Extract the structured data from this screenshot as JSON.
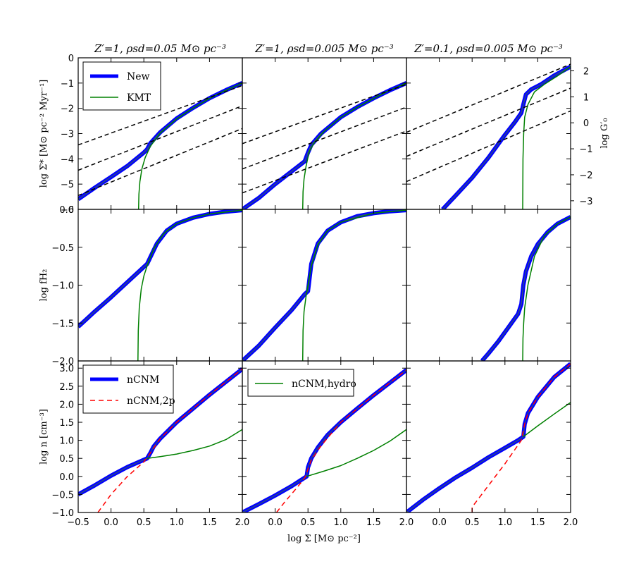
{
  "figure": {
    "xlabel": "log Σ [M⊙ pc⁻²]",
    "col_titles": [
      "Z′=1, ρsd=0.05 M⊙ pc⁻³",
      "Z′=1, ρsd=0.005 M⊙ pc⁻³",
      "Z′=0.1, ρsd=0.005 M⊙ pc⁻³"
    ],
    "row_ylabels": [
      "log Σ̇* [M⊙ pc⁻² Myr⁻¹]",
      "log fH₂",
      "log n [cm⁻³]"
    ],
    "right_ylabel": "log G′₀",
    "legend_top": [
      "New",
      "KMT"
    ],
    "legend_bottom_left": [
      "nCNM",
      "nCNM,2p"
    ],
    "legend_bottom_mid": [
      "nCNM,hydro"
    ],
    "colors": {
      "new": "#0000ff",
      "new_core": "#2f4f7f",
      "kmt": "#008000",
      "twop": "#ff0000",
      "guide": "#000000"
    }
  },
  "chart_data": [
    {
      "panel": "sfr-z1-rho005",
      "type": "line",
      "xlim": [
        -0.5,
        2.0
      ],
      "ylim": [
        -6,
        0
      ],
      "series": [
        {
          "name": "New",
          "x": [
            -0.5,
            -0.25,
            0,
            0.25,
            0.5,
            0.55,
            0.6,
            0.75,
            1,
            1.25,
            1.5,
            1.75,
            2.0
          ],
          "y": [
            -5.6,
            -5.15,
            -4.72,
            -4.28,
            -3.75,
            -3.62,
            -3.38,
            -2.95,
            -2.4,
            -1.98,
            -1.6,
            -1.28,
            -1.0
          ]
        },
        {
          "name": "KMT",
          "x": [
            0.42,
            0.425,
            0.44,
            0.47,
            0.52,
            0.6,
            0.75,
            1,
            1.25,
            1.5,
            1.75,
            2.0
          ],
          "y": [
            -6,
            -5.4,
            -4.9,
            -4.4,
            -3.95,
            -3.5,
            -2.98,
            -2.42,
            -1.99,
            -1.61,
            -1.28,
            -1.0
          ]
        },
        {
          "name": "G0 guide +1",
          "x": [
            -0.5,
            2.0
          ],
          "y": [
            -3.45,
            -1.1
          ]
        },
        {
          "name": "G0 guide 0",
          "x": [
            -0.5,
            2.0
          ],
          "y": [
            -4.45,
            -1.9
          ]
        },
        {
          "name": "G0 guide -1",
          "x": [
            -0.5,
            2.0
          ],
          "y": [
            -5.45,
            -2.8
          ]
        }
      ]
    },
    {
      "panel": "sfr-z1-rho0005",
      "type": "line",
      "xlim": [
        -0.5,
        2.0
      ],
      "ylim": [
        -6,
        0
      ],
      "series": [
        {
          "name": "New",
          "x": [
            -0.5,
            -0.25,
            0,
            0.25,
            0.45,
            0.5,
            0.55,
            0.7,
            1,
            1.25,
            1.5,
            1.75,
            2.0
          ],
          "y": [
            -6.0,
            -5.55,
            -5.0,
            -4.5,
            -4.1,
            -3.75,
            -3.45,
            -3.0,
            -2.35,
            -1.95,
            -1.6,
            -1.28,
            -1.0
          ]
        },
        {
          "name": "KMT",
          "x": [
            0.42,
            0.425,
            0.44,
            0.47,
            0.52,
            0.6,
            0.75,
            1,
            1.25,
            1.5,
            1.75,
            2.0
          ],
          "y": [
            -6,
            -5.3,
            -4.8,
            -4.3,
            -3.7,
            -3.35,
            -2.9,
            -2.36,
            -1.96,
            -1.61,
            -1.28,
            -1.0
          ]
        },
        {
          "name": "G0 guide +1",
          "x": [
            -0.5,
            2.0
          ],
          "y": [
            -3.4,
            -1.05
          ]
        },
        {
          "name": "G0 guide 0",
          "x": [
            -0.5,
            2.0
          ],
          "y": [
            -4.4,
            -1.95
          ]
        },
        {
          "name": "G0 guide -1",
          "x": [
            -0.5,
            2.0
          ],
          "y": [
            -5.35,
            -2.9
          ]
        }
      ]
    },
    {
      "panel": "sfr-z01-rho0005",
      "type": "line",
      "xlim": [
        -0.5,
        2.0
      ],
      "ylim": [
        -6,
        0
      ],
      "y2lim": [
        -3.33,
        2.5
      ],
      "y2label": "log G′₀",
      "series": [
        {
          "name": "New",
          "x": [
            0.05,
            0.25,
            0.5,
            0.75,
            1.0,
            1.15,
            1.25,
            1.28,
            1.32,
            1.4,
            1.55,
            1.75,
            2.0
          ],
          "y": [
            -6.0,
            -5.45,
            -4.75,
            -3.95,
            -3.05,
            -2.55,
            -2.18,
            -1.85,
            -1.45,
            -1.25,
            -1.05,
            -0.7,
            -0.35
          ]
        },
        {
          "name": "KMT",
          "x": [
            1.27,
            1.275,
            1.285,
            1.3,
            1.35,
            1.45,
            1.6,
            1.8,
            2.0
          ],
          "y": [
            -6,
            -4.0,
            -3.0,
            -2.35,
            -1.85,
            -1.35,
            -1.05,
            -0.72,
            -0.35
          ]
        },
        {
          "name": "G0 guide +1",
          "x": [
            -0.5,
            2.0
          ],
          "y": [
            -2.95,
            -0.25
          ]
        },
        {
          "name": "G0 guide 0",
          "x": [
            -0.5,
            2.0
          ],
          "y": [
            -3.9,
            -1.2
          ]
        },
        {
          "name": "G0 guide -1",
          "x": [
            -0.5,
            2.0
          ],
          "y": [
            -4.9,
            -2.1
          ]
        }
      ]
    },
    {
      "panel": "fh2-z1-rho005",
      "type": "line",
      "xlim": [
        -0.5,
        2.0
      ],
      "ylim": [
        -2.0,
        0.0
      ],
      "series": [
        {
          "name": "New",
          "x": [
            -0.5,
            -0.25,
            0,
            0.25,
            0.5,
            0.55,
            0.6,
            0.7,
            0.85,
            1,
            1.25,
            1.5,
            1.75,
            2.0
          ],
          "y": [
            -1.55,
            -1.35,
            -1.16,
            -0.96,
            -0.76,
            -0.72,
            -0.63,
            -0.45,
            -0.28,
            -0.19,
            -0.11,
            -0.06,
            -0.03,
            -0.01
          ]
        },
        {
          "name": "KMT",
          "x": [
            0.41,
            0.415,
            0.43,
            0.46,
            0.5,
            0.56,
            0.65,
            0.8,
            1,
            1.25,
            1.5,
            2.0
          ],
          "y": [
            -2.0,
            -1.6,
            -1.3,
            -1.05,
            -0.88,
            -0.72,
            -0.52,
            -0.32,
            -0.19,
            -0.11,
            -0.06,
            -0.01
          ]
        }
      ]
    },
    {
      "panel": "fh2-z1-rho0005",
      "type": "line",
      "xlim": [
        -0.5,
        2.0
      ],
      "ylim": [
        -2.0,
        0.0
      ],
      "series": [
        {
          "name": "New",
          "x": [
            -0.5,
            -0.25,
            0,
            0.25,
            0.45,
            0.5,
            0.55,
            0.65,
            0.8,
            1,
            1.25,
            1.5,
            1.75,
            2.0
          ],
          "y": [
            -2.0,
            -1.8,
            -1.56,
            -1.33,
            -1.12,
            -1.08,
            -0.72,
            -0.45,
            -0.28,
            -0.17,
            -0.09,
            -0.05,
            -0.025,
            -0.01
          ]
        },
        {
          "name": "KMT",
          "x": [
            0.42,
            0.425,
            0.44,
            0.47,
            0.5,
            0.55,
            0.65,
            0.8,
            1,
            1.5,
            2.0
          ],
          "y": [
            -2.0,
            -1.6,
            -1.35,
            -1.15,
            -1.0,
            -0.75,
            -0.47,
            -0.28,
            -0.17,
            -0.05,
            -0.01
          ]
        }
      ]
    },
    {
      "panel": "fh2-z01-rho0005",
      "type": "line",
      "xlim": [
        -0.5,
        2.0
      ],
      "ylim": [
        -2.0,
        0.0
      ],
      "series": [
        {
          "name": "New",
          "x": [
            0.65,
            0.75,
            0.9,
            1.05,
            1.2,
            1.25,
            1.28,
            1.32,
            1.4,
            1.5,
            1.65,
            1.8,
            2.0
          ],
          "y": [
            -2.0,
            -1.9,
            -1.74,
            -1.56,
            -1.38,
            -1.25,
            -1.0,
            -0.82,
            -0.62,
            -0.46,
            -0.3,
            -0.19,
            -0.1
          ]
        },
        {
          "name": "KMT",
          "x": [
            1.27,
            1.275,
            1.285,
            1.3,
            1.35,
            1.45,
            1.6,
            1.8,
            2.0
          ],
          "y": [
            -2.0,
            -1.7,
            -1.5,
            -1.3,
            -1.0,
            -0.62,
            -0.35,
            -0.19,
            -0.1
          ]
        }
      ]
    },
    {
      "panel": "n-z1-rho005",
      "type": "line",
      "xlim": [
        -0.5,
        2.0
      ],
      "ylim": [
        -1.0,
        3.2
      ],
      "series": [
        {
          "name": "nCNM",
          "x": [
            -0.5,
            -0.25,
            0,
            0.25,
            0.55,
            0.6,
            0.65,
            0.75,
            1,
            1.25,
            1.5,
            1.75,
            2.0
          ],
          "y": [
            -0.5,
            -0.25,
            0.02,
            0.26,
            0.5,
            0.65,
            0.83,
            1.05,
            1.5,
            1.88,
            2.26,
            2.62,
            2.98
          ]
        },
        {
          "name": "nCNM,2p",
          "x": [
            -0.2,
            0,
            0.25,
            0.5,
            0.6,
            0.75,
            1,
            1.25,
            1.5,
            1.75,
            2.0
          ],
          "y": [
            -1.0,
            -0.5,
            0.0,
            0.4,
            0.65,
            1.05,
            1.5,
            1.88,
            2.26,
            2.62,
            2.98
          ]
        },
        {
          "name": "nCNM,hydro",
          "x": [
            0.55,
            0.75,
            1,
            1.25,
            1.5,
            1.75,
            2.0
          ],
          "y": [
            0.5,
            0.55,
            0.62,
            0.72,
            0.84,
            1.02,
            1.3
          ]
        }
      ]
    },
    {
      "panel": "n-z1-rho0005",
      "type": "line",
      "xlim": [
        -0.5,
        2.0
      ],
      "ylim": [
        -1.0,
        3.2
      ],
      "series": [
        {
          "name": "nCNM",
          "x": [
            -0.5,
            -0.25,
            0,
            0.25,
            0.48,
            0.5,
            0.55,
            0.65,
            0.8,
            1,
            1.25,
            1.5,
            1.75,
            2.0
          ],
          "y": [
            -1.0,
            -0.77,
            -0.53,
            -0.27,
            0.0,
            0.25,
            0.5,
            0.8,
            1.15,
            1.5,
            1.88,
            2.25,
            2.6,
            2.95
          ]
        },
        {
          "name": "nCNM,2p",
          "x": [
            0.02,
            0.15,
            0.3,
            0.45,
            0.55,
            0.7,
            1,
            1.5,
            2.0
          ],
          "y": [
            -1.0,
            -0.7,
            -0.38,
            -0.05,
            0.45,
            0.85,
            1.5,
            2.25,
            2.95
          ]
        },
        {
          "name": "nCNM,hydro",
          "x": [
            0.48,
            0.75,
            1,
            1.25,
            1.5,
            1.75,
            2.0
          ],
          "y": [
            0.0,
            0.15,
            0.3,
            0.5,
            0.72,
            0.98,
            1.3
          ]
        }
      ]
    },
    {
      "panel": "n-z01-rho0005",
      "type": "line",
      "xlim": [
        -0.5,
        2.0
      ],
      "ylim": [
        -1.0,
        3.2
      ],
      "series": [
        {
          "name": "nCNM",
          "x": [
            -0.5,
            -0.25,
            0,
            0.25,
            0.5,
            0.75,
            1.0,
            1.2,
            1.28,
            1.3,
            1.35,
            1.5,
            1.75,
            2.0
          ],
          "y": [
            -1.0,
            -0.65,
            -0.33,
            -0.03,
            0.24,
            0.53,
            0.79,
            1.0,
            1.1,
            1.45,
            1.75,
            2.2,
            2.75,
            3.12
          ]
        },
        {
          "name": "nCNM,2p",
          "x": [
            0.5,
            0.5,
            0.75,
            1.0,
            1.25,
            1.3,
            1.35,
            1.5,
            1.75,
            2.0
          ],
          "y": [
            -1.0,
            -0.85,
            -0.25,
            0.35,
            1.0,
            1.45,
            1.75,
            2.2,
            2.75,
            3.12
          ]
        },
        {
          "name": "nCNM,hydro",
          "x": [
            1.28,
            1.5,
            1.75,
            2.0
          ],
          "y": [
            1.1,
            1.4,
            1.73,
            2.05
          ]
        }
      ]
    }
  ]
}
